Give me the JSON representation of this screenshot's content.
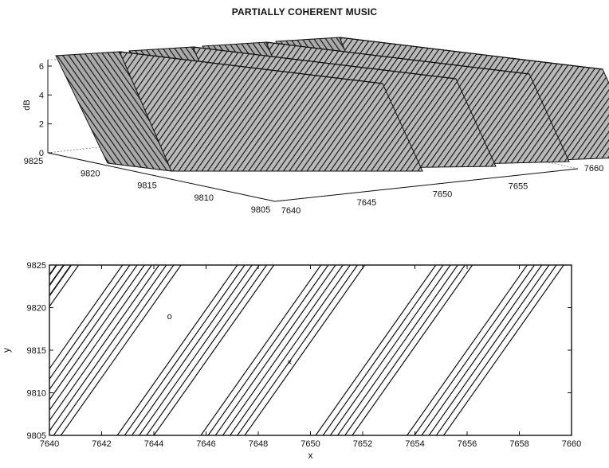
{
  "title": "PARTIALLY COHERENT MUSIC",
  "chart_data": [
    {
      "type": "surface",
      "title": "PARTIALLY COHERENT MUSIC",
      "zlabel": "dB",
      "zlim": [
        0,
        6
      ],
      "z_ticks": [
        "0",
        "2",
        "4",
        "6"
      ],
      "x_ticks": [
        "7640",
        "7645",
        "7650",
        "7655",
        "7660"
      ],
      "y_ticks": [
        "9825",
        "9820",
        "9815",
        "9810",
        "9805"
      ],
      "xlim": [
        7640,
        7660
      ],
      "ylim": [
        9805,
        9825
      ],
      "ridges": 4,
      "grid": true
    },
    {
      "type": "contour",
      "xlabel": "x",
      "ylabel": "y",
      "xlim": [
        7640,
        7660
      ],
      "ylim": [
        9805,
        9825
      ],
      "x_ticks": [
        "7640",
        "7642",
        "7644",
        "7646",
        "7648",
        "7650",
        "7652",
        "7654",
        "7656",
        "7658",
        "7660"
      ],
      "y_ticks": [
        "9825",
        "9820",
        "9815",
        "9810",
        "9805"
      ],
      "markers": [
        {
          "symbol": "o",
          "x": 7644.6,
          "y": 9819
        },
        {
          "symbol": "×",
          "x": 7649.2,
          "y": 9813.6
        }
      ],
      "bands": [
        {
          "x_top": 7640.0,
          "count": 5
        },
        {
          "x_top": 7642.8,
          "count": 5
        },
        {
          "x_top": 7644.2,
          "count": 4
        },
        {
          "x_top": 7647.2,
          "count": 6
        },
        {
          "x_top": 7650.4,
          "count": 7
        },
        {
          "x_top": 7654.8,
          "count": 6
        },
        {
          "x_top": 7658.3,
          "count": 6
        }
      ]
    }
  ]
}
